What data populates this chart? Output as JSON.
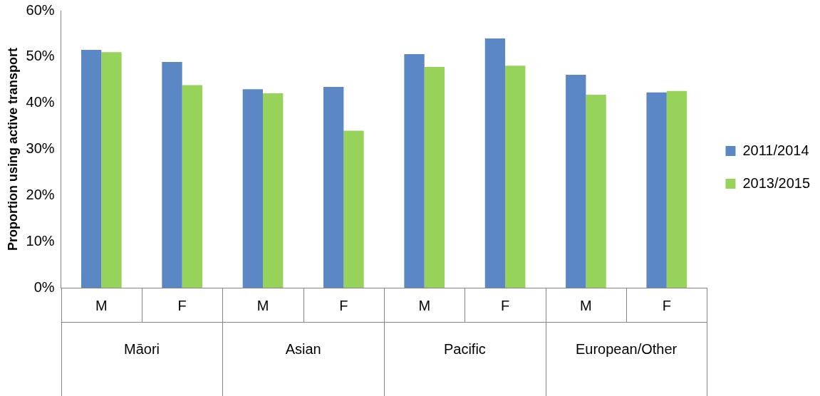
{
  "chart_data": {
    "type": "bar",
    "ylabel": "Proportion using active transport",
    "categories": [
      "M",
      "F",
      "M",
      "F",
      "M",
      "F",
      "M",
      "F"
    ],
    "series": [
      {
        "name": "2011/2014",
        "color": "#5b88c4",
        "values": [
          51.5,
          48.9,
          43.0,
          43.5,
          50.6,
          54.0,
          46.1,
          42.3
        ]
      },
      {
        "name": "2013/2015",
        "color": "#97d35a",
        "values": [
          51.0,
          43.9,
          42.1,
          34.0,
          47.8,
          48.1,
          41.8,
          42.6
        ]
      }
    ],
    "annotations": [
      "Māori",
      "Asian",
      "Pacific",
      "European/Other"
    ],
    "ylim": [
      0,
      60
    ],
    "yticks": [
      {
        "value": 0,
        "label": "0%"
      },
      {
        "value": 10,
        "label": "10%"
      },
      {
        "value": 20,
        "label": "20%"
      },
      {
        "value": 30,
        "label": "30%"
      },
      {
        "value": 40,
        "label": "40%"
      },
      {
        "value": 50,
        "label": "50%"
      },
      {
        "value": 60,
        "label": "60%"
      }
    ],
    "grid": false,
    "legend": "right"
  }
}
